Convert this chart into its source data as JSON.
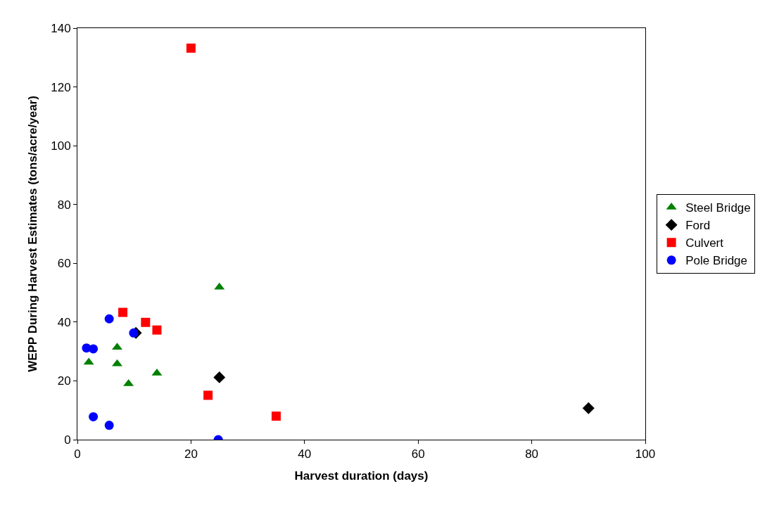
{
  "chart_data": {
    "type": "scatter",
    "xlabel": "Harvest duration (days)",
    "ylabel": "WEPP During Harvest Estimates (tons/acre/year)",
    "xlim": [
      0,
      100
    ],
    "xticks": [
      0,
      20,
      40,
      60,
      80,
      100
    ],
    "ylim": [
      0,
      140
    ],
    "yticks": [
      0,
      20,
      40,
      60,
      80,
      100,
      120,
      140
    ],
    "legend": "right",
    "series": [
      {
        "name": "Steel Bridge",
        "color": "#008000",
        "marker": "triangle",
        "x": [
          2,
          7,
          7,
          9,
          14,
          25
        ],
        "values": [
          26.3,
          31.4,
          25.8,
          19,
          22.6,
          51.9
        ]
      },
      {
        "name": "Ford",
        "color": "#000000",
        "marker": "diamond",
        "x": [
          10.3,
          25,
          90
        ],
        "values": [
          36.3,
          21.2,
          10.7
        ]
      },
      {
        "name": "Culvert",
        "color": "#ff0000",
        "marker": "square",
        "x": [
          20,
          8,
          12,
          14,
          23,
          35
        ],
        "values": [
          133.2,
          43.3,
          39.9,
          37.3,
          15.1,
          8
        ]
      },
      {
        "name": "Pole Bridge",
        "color": "#0000ff",
        "marker": "circle",
        "x": [
          1.6,
          2.8,
          2.8,
          5.6,
          5.6,
          9.9,
          24.8
        ],
        "values": [
          31.2,
          30.9,
          7.8,
          41.1,
          4.9,
          36.3,
          0
        ]
      }
    ]
  }
}
